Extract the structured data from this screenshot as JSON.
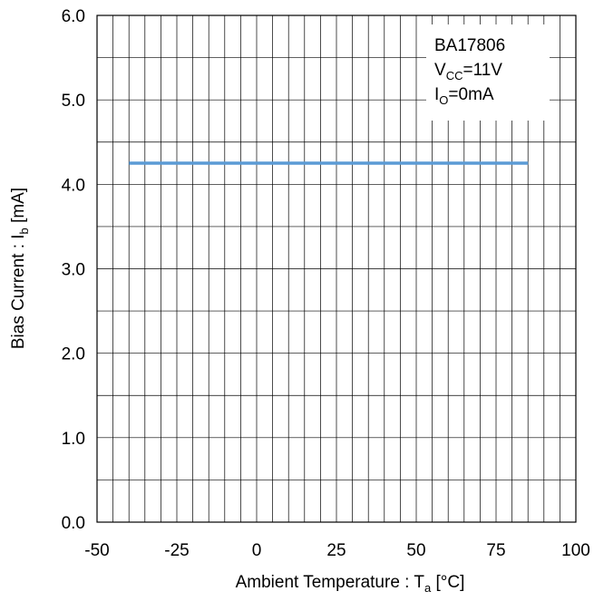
{
  "chart_data": {
    "type": "line",
    "title": "",
    "xlabel": {
      "main": "Ambient Temperature : T",
      "sub": "a",
      "unit": " [°C]"
    },
    "ylabel": {
      "main": "Bias Current : I",
      "sub": "b",
      "unit": " [mA]"
    },
    "xlim": [
      -50,
      100
    ],
    "ylim": [
      0.0,
      6.0
    ],
    "x_ticks": [
      "-50",
      "-25",
      "0",
      "25",
      "50",
      "75",
      "100"
    ],
    "y_ticks": [
      "0.0",
      "1.0",
      "2.0",
      "3.0",
      "4.0",
      "5.0",
      "6.0"
    ],
    "grid": true,
    "series": [
      {
        "color": "#5b9bd5",
        "x": [
          -40,
          85
        ],
        "y": [
          4.25,
          4.25
        ]
      }
    ],
    "annotations": {
      "part": "BA17806",
      "vcc": {
        "main": "V",
        "sub": "CC",
        "rest": "=11V"
      },
      "io": {
        "main": "I",
        "sub": "O",
        "rest": "=0mA"
      }
    }
  }
}
